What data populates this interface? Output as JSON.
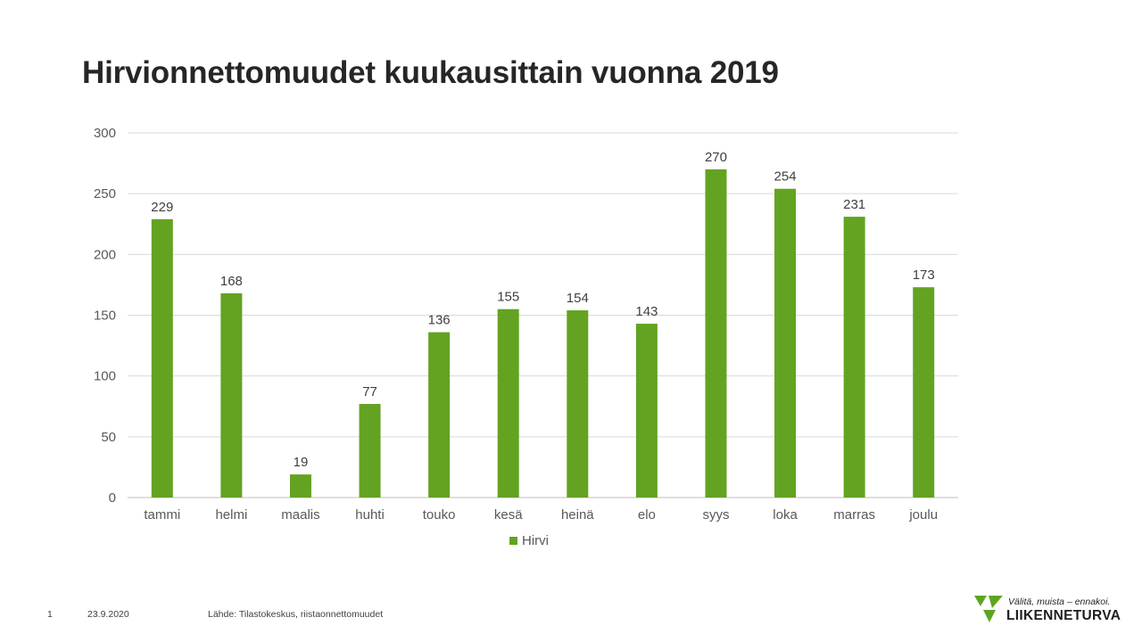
{
  "slide": {
    "title": "Hirvionnettomuudet kuukausittain vuonna 2019",
    "page_number": "1",
    "date": "23.9.2020",
    "source": "Lähde: Tilastokeskus, riistaonnettomuudet"
  },
  "logo": {
    "tagline": "Välitä, muista – ennakoi.",
    "brand": "LIIKENNETURVA",
    "icon": "liikenneturva-logo-icon",
    "color": "#5fa524"
  },
  "chart_data": {
    "type": "bar",
    "title": "",
    "xlabel": "",
    "ylabel": "",
    "categories": [
      "tammi",
      "helmi",
      "maalis",
      "huhti",
      "touko",
      "kesä",
      "heinä",
      "elo",
      "syys",
      "loka",
      "marras",
      "joulu"
    ],
    "series": [
      {
        "name": "Hirvi",
        "values": [
          229,
          168,
          19,
          77,
          136,
          155,
          154,
          143,
          270,
          254,
          231,
          173
        ],
        "color": "#63a321"
      }
    ],
    "ylim": [
      0,
      300
    ],
    "yticks": [
      0,
      50,
      100,
      150,
      200,
      250,
      300
    ],
    "grid": true,
    "legend": "bottom",
    "data_labels": true
  }
}
